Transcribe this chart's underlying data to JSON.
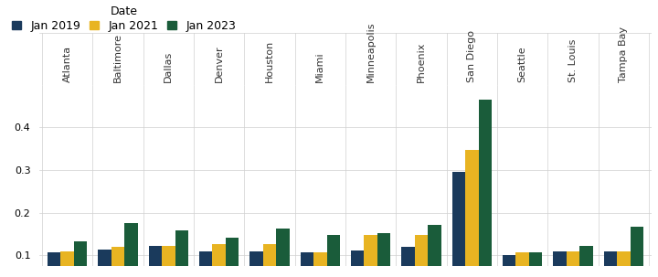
{
  "cities": [
    "Atlanta",
    "Baltimore",
    "Dallas",
    "Denver",
    "Houston",
    "Miami",
    "Minneapolis",
    "Phoenix",
    "San Diego",
    "Seattle",
    "St. Louis",
    "Tampa Bay"
  ],
  "jan2019": [
    0.107,
    0.113,
    0.121,
    0.109,
    0.11,
    0.108,
    0.112,
    0.119,
    0.296,
    0.1,
    0.11,
    0.11
  ],
  "jan2021": [
    0.11,
    0.12,
    0.122,
    0.127,
    0.127,
    0.108,
    0.147,
    0.148,
    0.348,
    0.107,
    0.11,
    0.11
  ],
  "jan2023": [
    0.132,
    0.175,
    0.158,
    0.141,
    0.162,
    0.147,
    0.152,
    0.172,
    0.465,
    0.108,
    0.121,
    0.167
  ],
  "color_2019": "#1a3a5c",
  "color_2021": "#e8b422",
  "color_2023": "#1a5c3a",
  "legend_labels": [
    "Jan 2019",
    "Jan 2021",
    "Jan 2023"
  ],
  "legend_title": "Date",
  "ylim_min": 0.075,
  "ylim_max": 0.5,
  "yticks": [
    0.1,
    0.2,
    0.3,
    0.4
  ],
  "bar_width": 0.26
}
